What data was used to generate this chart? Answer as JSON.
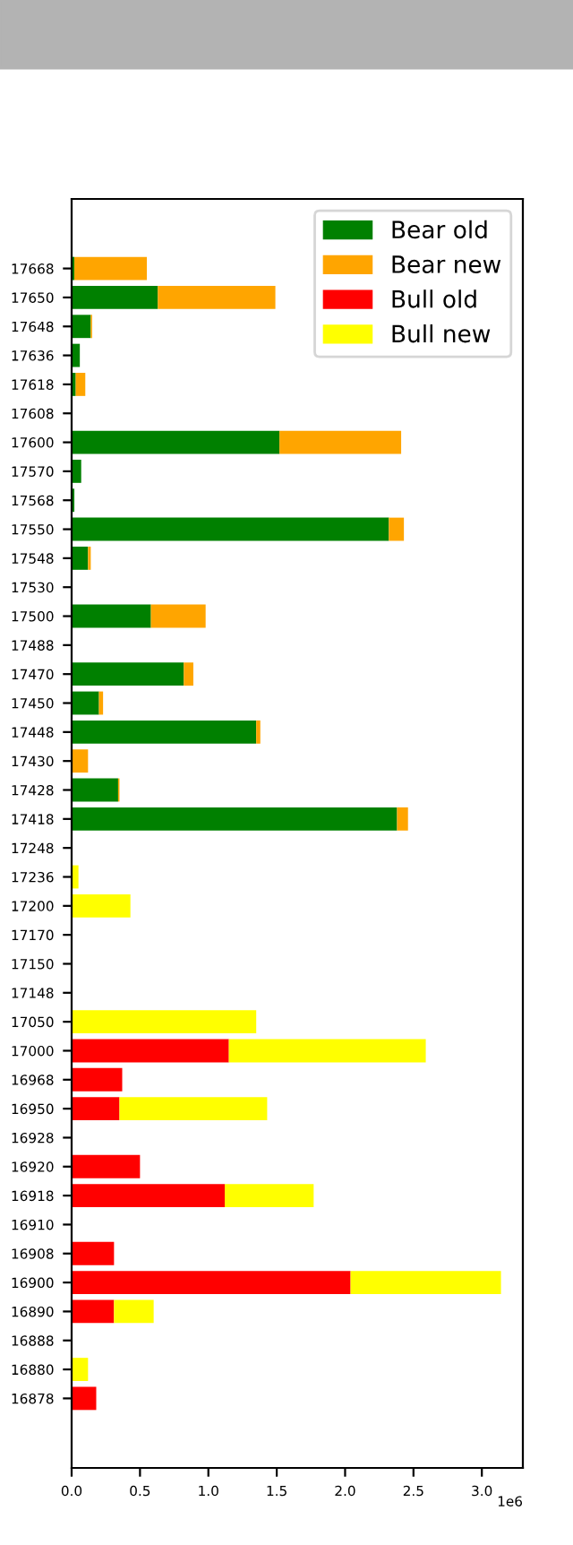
{
  "chart_data": {
    "type": "bar",
    "orientation": "horizontal",
    "stacked": true,
    "categories": [
      "17668",
      "17650",
      "17648",
      "17636",
      "17618",
      "17608",
      "17600",
      "17570",
      "17568",
      "17550",
      "17548",
      "17530",
      "17500",
      "17488",
      "17470",
      "17450",
      "17448",
      "17430",
      "17428",
      "17418",
      "17248",
      "17236",
      "17200",
      "17170",
      "17150",
      "17148",
      "17050",
      "17000",
      "16968",
      "16950",
      "16928",
      "16920",
      "16918",
      "16910",
      "16908",
      "16900",
      "16890",
      "16888",
      "16880",
      "16878"
    ],
    "series": [
      {
        "name": "Bear old",
        "color": "#008000",
        "values": [
          0.02,
          0.63,
          0.14,
          0.06,
          0.03,
          0,
          1.52,
          0.07,
          0.02,
          2.32,
          0.12,
          0,
          0.58,
          0,
          0.82,
          0.2,
          1.35,
          0,
          0.34,
          2.38,
          0,
          0,
          0,
          0,
          0,
          0,
          0,
          0,
          0,
          0,
          0,
          0,
          0,
          0,
          0,
          0,
          0,
          0,
          0,
          0
        ]
      },
      {
        "name": "Bear new",
        "color": "#ffa500",
        "values": [
          0.53,
          0.86,
          0.01,
          0,
          0.07,
          0,
          0.89,
          0,
          0,
          0.11,
          0.02,
          0,
          0.4,
          0,
          0.07,
          0.03,
          0.03,
          0.12,
          0.01,
          0.08,
          0,
          0,
          0,
          0,
          0,
          0,
          0,
          0,
          0,
          0,
          0,
          0,
          0,
          0,
          0,
          0,
          0,
          0,
          0,
          0
        ]
      },
      {
        "name": "Bull old",
        "color": "#ff0000",
        "values": [
          0,
          0,
          0,
          0,
          0,
          0,
          0,
          0,
          0,
          0,
          0,
          0,
          0,
          0,
          0,
          0,
          0,
          0,
          0,
          0,
          0,
          0,
          0,
          0,
          0,
          0,
          0,
          1.15,
          0.37,
          0.35,
          0,
          0.5,
          1.12,
          0,
          0.31,
          2.04,
          0.31,
          0,
          0,
          0.18
        ]
      },
      {
        "name": "Bull new",
        "color": "#ffff00",
        "values": [
          0,
          0,
          0,
          0,
          0,
          0,
          0,
          0,
          0,
          0,
          0,
          0,
          0,
          0,
          0,
          0,
          0,
          0,
          0,
          0,
          0,
          0.05,
          0.43,
          0,
          0,
          0,
          1.35,
          1.44,
          0,
          1.08,
          0,
          0,
          0.65,
          0,
          0,
          1.1,
          0.29,
          0,
          0.12,
          0
        ]
      }
    ],
    "xlim": [
      0,
      3.3
    ],
    "xticks": [
      {
        "value": 0,
        "label": "0.0"
      },
      {
        "value": 0.5,
        "label": "0.5"
      },
      {
        "value": 1,
        "label": "1.0"
      },
      {
        "value": 1.5,
        "label": "1.5"
      },
      {
        "value": 2,
        "label": "2.0"
      },
      {
        "value": 2.5,
        "label": "2.5"
      },
      {
        "value": 3,
        "label": "3.0"
      }
    ],
    "annotations": [
      "1e6"
    ],
    "legend": "top right",
    "grid": false
  }
}
